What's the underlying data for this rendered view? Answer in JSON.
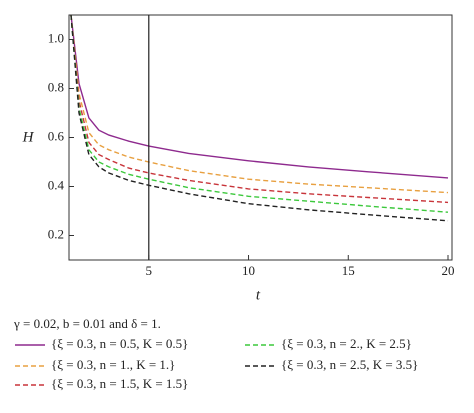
{
  "chart_data": {
    "type": "line",
    "x_label": "t",
    "y_label": "H",
    "legend_title": "γ = 0.02, b = 0.01 and δ = 1.",
    "x": [
      1.1,
      1.5,
      2,
      2.5,
      3,
      4,
      5,
      7,
      10,
      13,
      16,
      20
    ],
    "series": [
      {
        "name": "{ξ = 0.3, n = 0.5, K = 0.5}",
        "color": "#8e2a8e",
        "dash": "solid",
        "values": [
          1.1,
          0.82,
          0.68,
          0.63,
          0.61,
          0.585,
          0.565,
          0.535,
          0.505,
          0.48,
          0.46,
          0.435
        ]
      },
      {
        "name": "{ξ = 0.3, n = 1., K = 1.}",
        "color": "#e8a040",
        "dash": "dashed",
        "values": [
          1.1,
          0.78,
          0.62,
          0.57,
          0.55,
          0.52,
          0.5,
          0.465,
          0.43,
          0.41,
          0.395,
          0.375
        ]
      },
      {
        "name": "{ξ = 0.3, n = 1.5, K = 1.5}",
        "color": "#c8343a",
        "dash": "dashed",
        "values": [
          1.1,
          0.75,
          0.58,
          0.53,
          0.51,
          0.475,
          0.455,
          0.425,
          0.39,
          0.37,
          0.355,
          0.335
        ]
      },
      {
        "name": "{ξ = 0.3, n = 2., K = 2.5}",
        "color": "#3cc83c",
        "dash": "dashed",
        "values": [
          1.1,
          0.72,
          0.55,
          0.5,
          0.48,
          0.45,
          0.43,
          0.395,
          0.36,
          0.34,
          0.32,
          0.295
        ]
      },
      {
        "name": "{ξ = 0.3, n = 2.5, K = 3.5}",
        "color": "#222222",
        "dash": "dashed",
        "values": [
          1.1,
          0.7,
          0.53,
          0.48,
          0.455,
          0.425,
          0.405,
          0.37,
          0.33,
          0.305,
          0.285,
          0.26
        ]
      }
    ],
    "vline": 5,
    "xlim": [
      1,
      20.2
    ],
    "ylim": [
      0.1,
      1.1
    ],
    "xticks": [
      5,
      10,
      15,
      20
    ],
    "yticks": [
      {
        "value": 1.0,
        "label": "1.0"
      },
      {
        "value": 0.8,
        "label": "0.8"
      },
      {
        "value": 0.6,
        "label": "0.6"
      },
      {
        "value": 0.4,
        "label": "0.4"
      },
      {
        "value": 0.2,
        "label": "0.2"
      }
    ]
  }
}
